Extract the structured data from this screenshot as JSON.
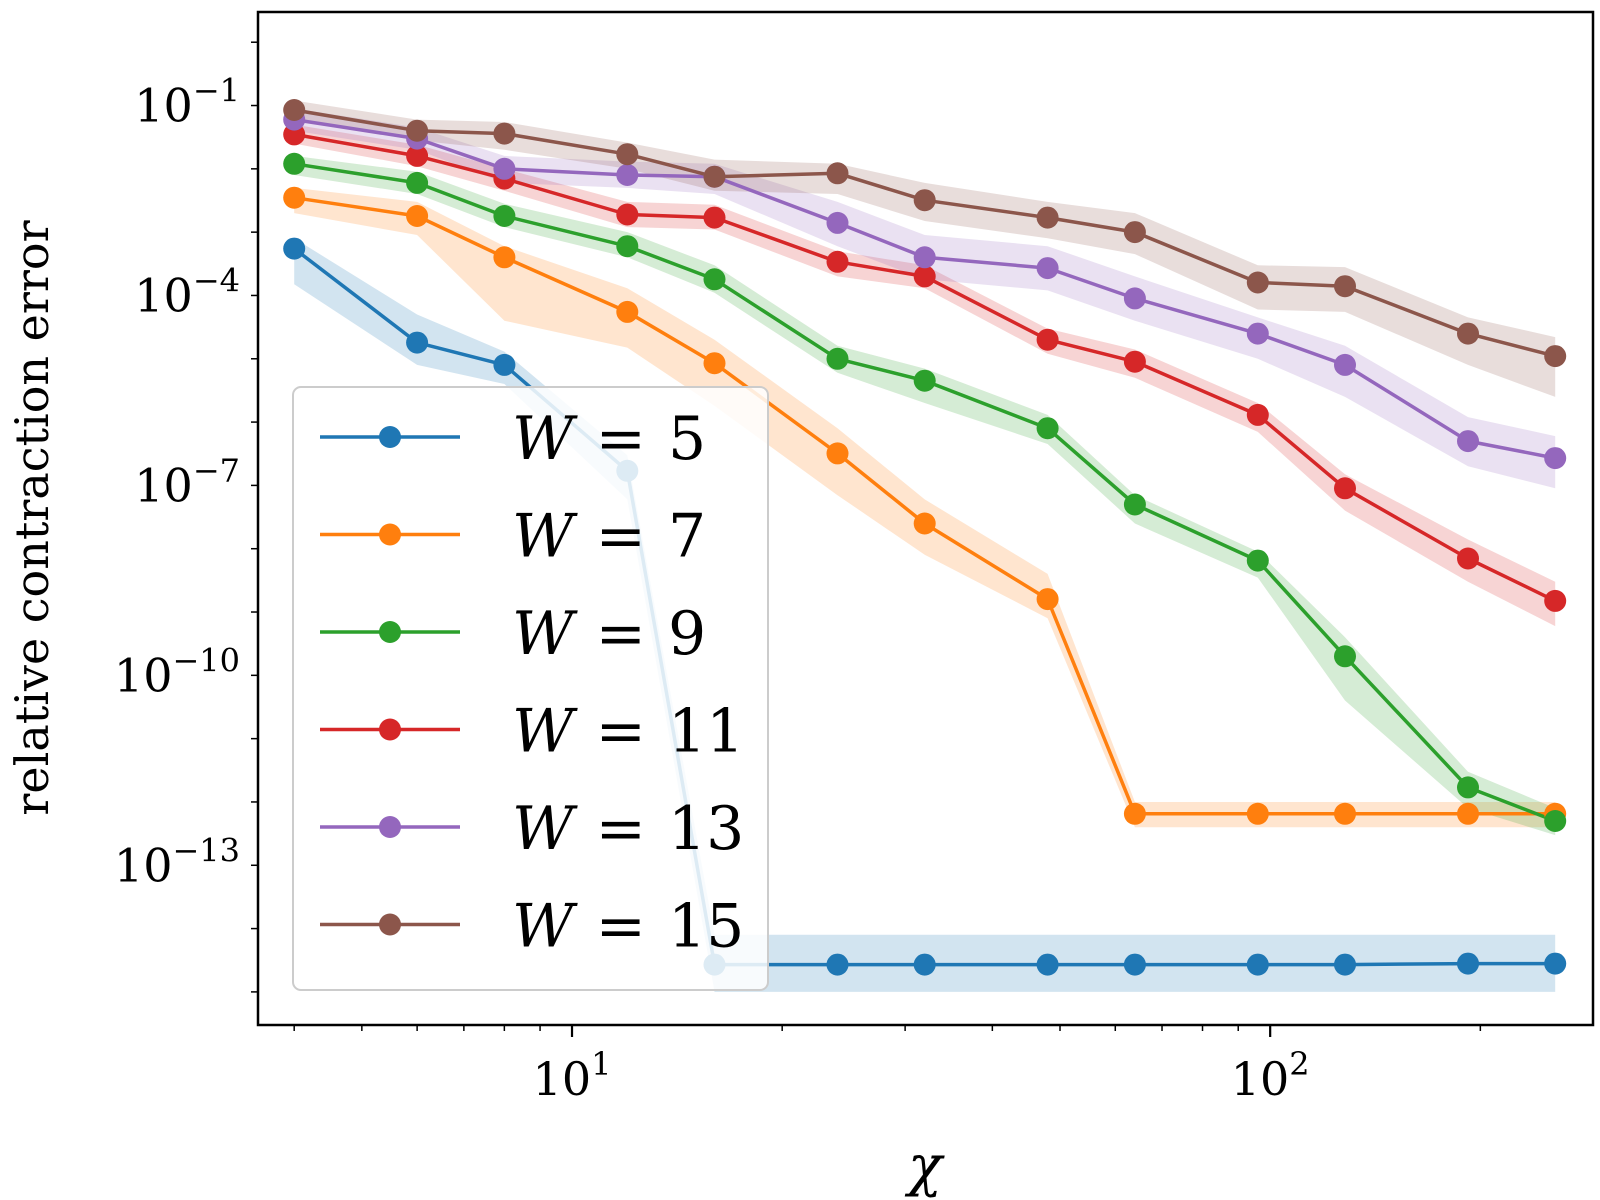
{
  "chart_data": {
    "type": "line",
    "title": "",
    "xlabel": "χ",
    "ylabel": "relative contraction error",
    "xscale": "log",
    "yscale": "log",
    "xlim": [
      3.55,
      290
    ],
    "ylim": [
      3e-16,
      3.0
    ],
    "x_tick_labels": [
      {
        "value": 10,
        "base": "10",
        "exp": "1"
      },
      {
        "value": 100,
        "base": "10",
        "exp": "2"
      }
    ],
    "y_tick_labels": [
      {
        "value": 0.1,
        "base": "10",
        "exp": "−1"
      },
      {
        "value": 0.0001,
        "base": "10",
        "exp": "−4"
      },
      {
        "value": 1e-07,
        "base": "10",
        "exp": "−7"
      },
      {
        "value": 1e-10,
        "base": "10",
        "exp": "−10"
      },
      {
        "value": 1e-13,
        "base": "10",
        "exp": "−13"
      }
    ],
    "legend_position": "lower-left",
    "x": [
      4,
      6,
      8,
      12,
      16,
      24,
      32,
      48,
      64,
      96,
      128,
      192,
      256
    ],
    "series": [
      {
        "name": "W = 5",
        "label_var": "W",
        "label_eq": "=",
        "label_num": "5",
        "color": "#1f77b4",
        "values": [
          0.00055,
          1.8e-05,
          8e-06,
          1.7e-07,
          2.7e-15,
          2.7e-15,
          2.7e-15,
          2.7e-15,
          2.7e-15,
          2.7e-15,
          2.7e-15,
          2.8e-15,
          2.8e-15
        ],
        "lower": [
          0.00015,
          8e-06,
          4e-06,
          6e-08,
          1e-15,
          1e-15,
          1e-15,
          1e-15,
          1e-15,
          1e-15,
          1e-15,
          1e-15,
          1e-15
        ],
        "upper": [
          0.0008,
          5e-05,
          1.3e-05,
          3e-07,
          8e-15,
          8e-15,
          8e-15,
          8e-15,
          8e-15,
          8e-15,
          8e-15,
          8e-15,
          8e-15
        ]
      },
      {
        "name": "W = 7",
        "label_var": "W",
        "label_eq": "=",
        "label_num": "7",
        "color": "#ff7f0e",
        "values": [
          0.0035,
          0.0018,
          0.0004,
          5.5e-05,
          8.5e-06,
          3.2e-07,
          2.5e-08,
          1.6e-09,
          6.5e-13,
          6.5e-13,
          6.5e-13,
          6.5e-13,
          6.5e-13
        ],
        "lower": [
          0.002,
          0.0009,
          4e-05,
          1.5e-05,
          1.8e-06,
          7e-08,
          8e-09,
          8e-10,
          4e-13,
          4e-13,
          4e-13,
          4e-13,
          4e-13
        ],
        "upper": [
          0.005,
          0.003,
          0.0006,
          0.00013,
          2e-05,
          8e-07,
          6e-08,
          4e-09,
          1e-12,
          1e-12,
          1e-12,
          1e-12,
          1e-12
        ]
      },
      {
        "name": "W = 9",
        "label_var": "W",
        "label_eq": "=",
        "label_num": "9",
        "color": "#2ca02c",
        "values": [
          0.012,
          0.006,
          0.0018,
          0.0006,
          0.00018,
          1e-05,
          4.5e-06,
          8e-07,
          5e-08,
          6.5e-09,
          2e-10,
          1.7e-12,
          5e-13
        ],
        "lower": [
          0.008,
          0.004,
          0.0012,
          0.0004,
          0.00011,
          6e-06,
          2e-06,
          4.5e-07,
          2.5e-08,
          3.5e-09,
          4e-11,
          8e-13,
          3e-13
        ],
        "upper": [
          0.016,
          0.009,
          0.0028,
          0.001,
          0.0003,
          1.6e-05,
          7e-06,
          1.3e-06,
          7e-08,
          9e-09,
          4e-10,
          3e-12,
          8e-13
        ]
      },
      {
        "name": "W = 11",
        "label_var": "W",
        "label_eq": "=",
        "label_num": "11",
        "color": "#d62728",
        "values": [
          0.035,
          0.016,
          0.007,
          0.0019,
          0.0017,
          0.00034,
          0.0002,
          2e-05,
          9e-06,
          1.3e-06,
          9e-08,
          7e-09,
          1.5e-09
        ],
        "lower": [
          0.025,
          0.011,
          0.0045,
          0.0012,
          0.0011,
          0.0002,
          0.00013,
          1.2e-05,
          5e-06,
          7e-07,
          4e-08,
          3e-09,
          6e-10
        ],
        "upper": [
          0.05,
          0.024,
          0.01,
          0.003,
          0.0027,
          0.0005,
          0.0003,
          3e-05,
          1.4e-05,
          2e-06,
          1.5e-07,
          1.4e-08,
          3e-09
        ]
      },
      {
        "name": "W = 13",
        "label_var": "W",
        "label_eq": "=",
        "label_num": "13",
        "color": "#9467bd",
        "values": [
          0.06,
          0.03,
          0.01,
          0.008,
          0.0075,
          0.0014,
          0.0004,
          0.00027,
          9e-05,
          2.5e-05,
          8e-06,
          5e-07,
          2.7e-07
        ],
        "lower": [
          0.04,
          0.02,
          0.006,
          0.005,
          0.004,
          0.0006,
          0.00018,
          0.00012,
          4e-05,
          1e-05,
          2.5e-06,
          2e-07,
          9e-08
        ],
        "upper": [
          0.09,
          0.045,
          0.016,
          0.013,
          0.012,
          0.003,
          0.0009,
          0.0006,
          0.0002,
          4.5e-05,
          1.6e-05,
          1.2e-06,
          6e-07
        ]
      },
      {
        "name": "W = 15",
        "label_var": "W",
        "label_eq": "=",
        "label_num": "15",
        "color": "#8c564b",
        "values": [
          0.085,
          0.04,
          0.036,
          0.017,
          0.0075,
          0.0085,
          0.0032,
          0.0017,
          0.001,
          0.00016,
          0.00014,
          2.5e-05,
          1.1e-05
        ],
        "lower": [
          0.06,
          0.028,
          0.02,
          0.01,
          0.0045,
          0.004,
          0.0015,
          0.0008,
          0.00045,
          6e-05,
          5.5e-05,
          8e-06,
          2.5e-06
        ],
        "upper": [
          0.12,
          0.06,
          0.055,
          0.026,
          0.014,
          0.012,
          0.006,
          0.003,
          0.002,
          0.0003,
          0.00028,
          4.5e-05,
          2.2e-05
        ]
      }
    ]
  }
}
